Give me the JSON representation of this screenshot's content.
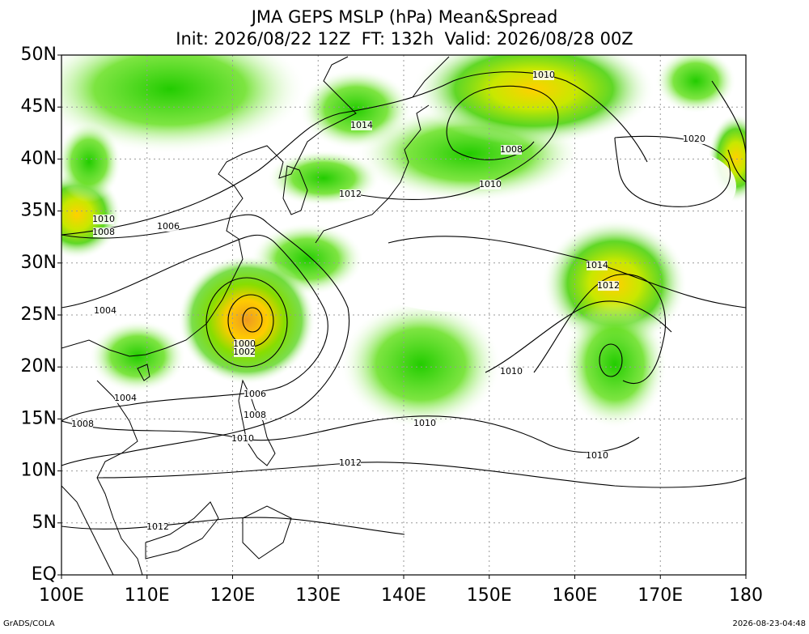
{
  "header": {
    "title": "JMA GEPS MSLP (hPa) Mean&Spread",
    "subtitle": "Init: 2026/08/22 12Z  FT: 132h  Valid: 2026/08/28 00Z"
  },
  "map": {
    "lat_labels": [
      "50N",
      "45N",
      "40N",
      "35N",
      "30N",
      "25N",
      "20N",
      "15N",
      "10N",
      "5N",
      "EQ"
    ],
    "lon_labels": [
      "100E",
      "110E",
      "120E",
      "130E",
      "140E",
      "150E",
      "160E",
      "170E",
      "180"
    ],
    "contour_labels": [
      "1010",
      "1014",
      "1008",
      "1010",
      "1012",
      "1020",
      "1010",
      "1008",
      "1006",
      "1014",
      "1012",
      "1004",
      "1000",
      "1002",
      "1010",
      "1004",
      "1006",
      "1008",
      "1010",
      "1008",
      "1010",
      "1010",
      "1012",
      "1012"
    ]
  },
  "footer": {
    "left": "GrADS/COLA",
    "right": "2026-08-23-04:48"
  }
}
